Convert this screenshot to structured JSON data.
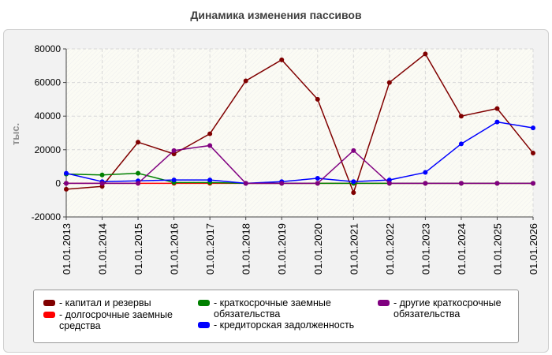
{
  "chart_data": {
    "type": "line",
    "title": "Динамика изменения пассивов",
    "ylabel": "тыс.",
    "xlabel": "",
    "ylim": [
      -20000,
      80000
    ],
    "yticks": [
      -20000,
      0,
      20000,
      40000,
      60000,
      80000
    ],
    "grid": true,
    "legend_position": "bottom",
    "categories": [
      "01.01.2013",
      "01.01.2014",
      "01.01.2015",
      "01.01.2016",
      "01.01.2017",
      "01.01.2018",
      "01.01.2019",
      "01.01.2020",
      "01.01.2021",
      "01.01.2022",
      "01.01.2023",
      "01.01.2024",
      "01.01.2025",
      "01.01.2026"
    ],
    "series": [
      {
        "name": "капитал и резервы",
        "color": "#800000",
        "values": [
          -3500,
          -1800,
          24500,
          17500,
          29500,
          61000,
          73500,
          50000,
          -5500,
          60000,
          77000,
          40000,
          44500,
          18000
        ]
      },
      {
        "name": "долгосрочные заемные средства",
        "color": "#ff0000",
        "values": [
          0,
          0,
          0,
          0,
          0,
          0,
          0,
          0,
          0,
          0,
          0,
          0,
          0,
          0
        ]
      },
      {
        "name": "краткосрочные заемные обязательства",
        "color": "#008000",
        "values": [
          5500,
          5000,
          6000,
          500,
          500,
          0,
          0,
          0,
          0,
          0,
          0,
          0,
          0,
          0
        ]
      },
      {
        "name": "кредиторская задолженность",
        "color": "#0000ff",
        "values": [
          6000,
          1000,
          1500,
          2000,
          2000,
          0,
          1000,
          3000,
          1000,
          2000,
          6500,
          23500,
          36500,
          33000
        ]
      },
      {
        "name": "другие краткосрочные обязательства",
        "color": "#800080",
        "values": [
          0,
          0,
          0,
          19500,
          22500,
          0,
          0,
          0,
          19500,
          0,
          0,
          0,
          0,
          0
        ]
      }
    ]
  }
}
